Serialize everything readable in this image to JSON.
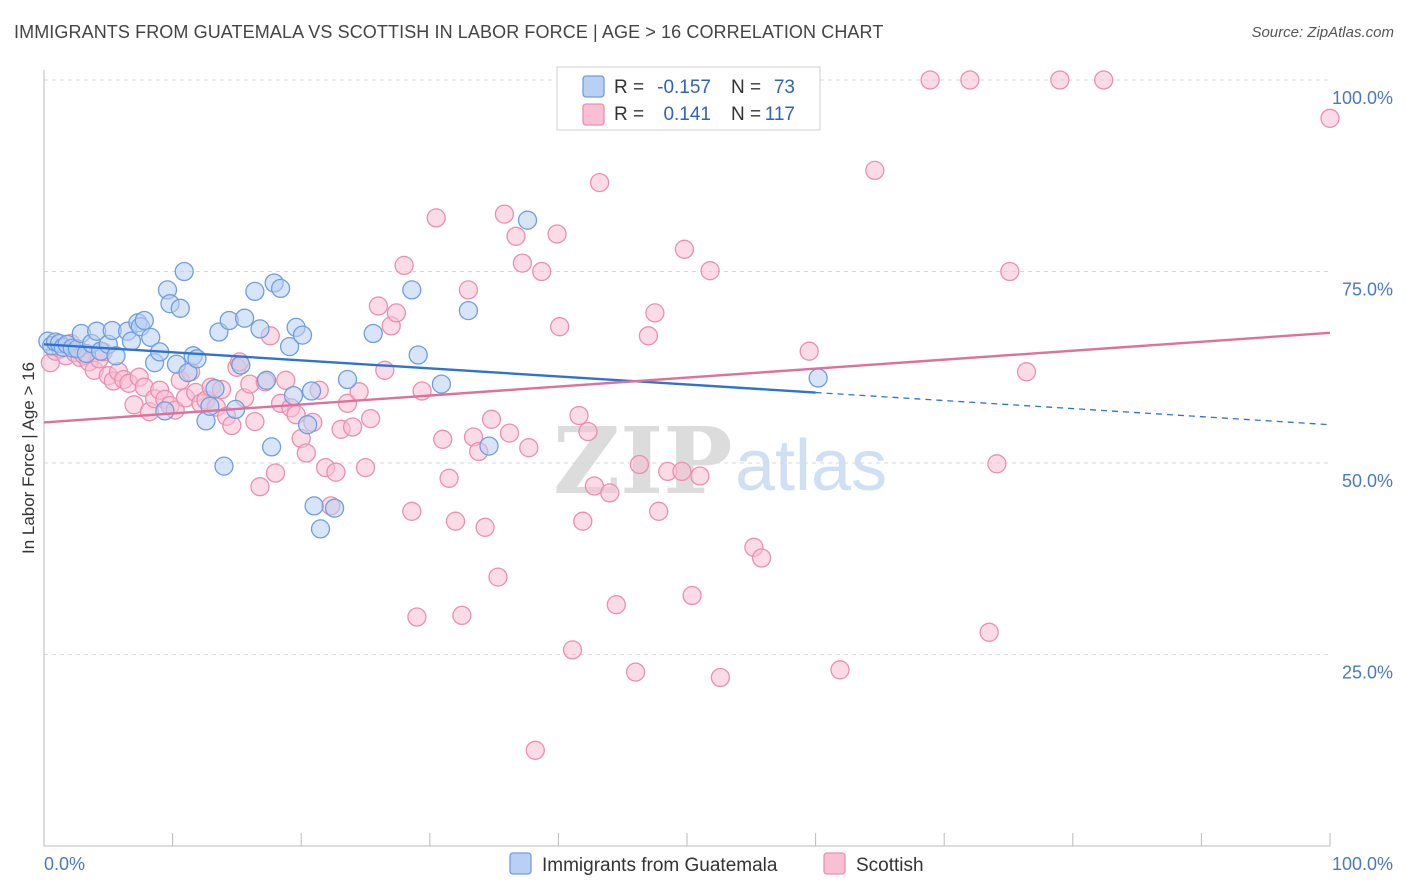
{
  "title": "IMMIGRANTS FROM GUATEMALA VS SCOTTISH IN LABOR FORCE | AGE > 16 CORRELATION CHART",
  "source": "Source: ZipAtlas.com",
  "watermark": {
    "zip": "ZIP",
    "atlas": "atlas"
  },
  "colors": {
    "blue_fill": "#b8d0f4",
    "blue_stroke": "#6f9ee0",
    "blue_line": "#2f73d0",
    "pink_fill": "#f8c0d2",
    "pink_stroke": "#ec8fad",
    "pink_line": "#e0709a",
    "grid": "#d8d8d8",
    "tick_text": "#4a78c8"
  },
  "legend": {
    "rows": [
      {
        "r_label": "R =",
        "r_value": "-0.157",
        "n_label": "N =",
        "n_value": "73"
      },
      {
        "r_label": "R =",
        "r_value": "0.141",
        "n_label": "N =",
        "n_value": "117"
      }
    ]
  },
  "chart_data": {
    "type": "scatter",
    "xlabel": "",
    "ylabel": "In Labor Force | Age > 16",
    "xlim": [
      0,
      100
    ],
    "ylim": [
      0,
      102
    ],
    "x_tick_labels": [
      "0.0%",
      "100.0%"
    ],
    "y_tick_labels": [
      "25.0%",
      "50.0%",
      "75.0%",
      "100.0%"
    ],
    "y_ticks": [
      25,
      50,
      75,
      100
    ],
    "grid": "horizontal dashed",
    "legend_position": "top-center and bottom",
    "series": [
      {
        "name": "Immigrants from Guatemala",
        "color": "blue",
        "r": -0.157,
        "n": 73,
        "trend": {
          "x0": 0,
          "y0": 65.5,
          "x1": 60,
          "y1": 59.2,
          "dashed_to_x": 100,
          "dashed_to_y": 55.0
        },
        "points": [
          [
            0.3,
            65.9
          ],
          [
            0.6,
            65.3
          ],
          [
            0.9,
            65.8
          ],
          [
            1.2,
            65.6
          ],
          [
            1.5,
            65.1
          ],
          [
            1.8,
            65.5
          ],
          [
            2.2,
            65.0
          ],
          [
            2.6,
            64.9
          ],
          [
            2.9,
            66.9
          ],
          [
            3.3,
            64.3
          ],
          [
            3.7,
            65.6
          ],
          [
            4.1,
            67.2
          ],
          [
            4.4,
            64.6
          ],
          [
            5.0,
            65.5
          ],
          [
            5.3,
            67.3
          ],
          [
            5.6,
            64.0
          ],
          [
            6.5,
            67.2
          ],
          [
            6.8,
            65.9
          ],
          [
            7.3,
            68.3
          ],
          [
            7.5,
            67.8
          ],
          [
            7.8,
            68.6
          ],
          [
            8.3,
            66.4
          ],
          [
            8.6,
            63.1
          ],
          [
            9.0,
            64.5
          ],
          [
            9.4,
            56.8
          ],
          [
            9.6,
            72.6
          ],
          [
            9.8,
            70.8
          ],
          [
            10.3,
            62.9
          ],
          [
            10.6,
            70.2
          ],
          [
            10.9,
            75.0
          ],
          [
            11.2,
            61.8
          ],
          [
            11.6,
            64.0
          ],
          [
            11.9,
            63.6
          ],
          [
            12.6,
            55.5
          ],
          [
            12.9,
            57.4
          ],
          [
            13.3,
            59.7
          ],
          [
            13.6,
            67.1
          ],
          [
            14.0,
            49.6
          ],
          [
            14.4,
            68.6
          ],
          [
            14.9,
            57.0
          ],
          [
            15.3,
            62.8
          ],
          [
            15.6,
            68.9
          ],
          [
            16.4,
            72.4
          ],
          [
            16.8,
            67.5
          ],
          [
            17.3,
            60.8
          ],
          [
            17.7,
            52.1
          ],
          [
            17.9,
            73.5
          ],
          [
            18.4,
            72.8
          ],
          [
            19.1,
            65.2
          ],
          [
            19.4,
            58.8
          ],
          [
            19.6,
            67.7
          ],
          [
            20.1,
            66.7
          ],
          [
            20.5,
            55.0
          ],
          [
            20.8,
            59.4
          ],
          [
            21.0,
            44.4
          ],
          [
            21.5,
            41.4
          ],
          [
            22.6,
            44.1
          ],
          [
            23.6,
            60.9
          ],
          [
            25.6,
            66.9
          ],
          [
            28.6,
            72.6
          ],
          [
            29.1,
            64.1
          ],
          [
            30.9,
            60.3
          ],
          [
            33.0,
            69.9
          ],
          [
            34.6,
            52.2
          ],
          [
            37.6,
            81.7
          ],
          [
            60.2,
            61.1
          ]
        ]
      },
      {
        "name": "Scottish",
        "color": "pink",
        "r": 0.141,
        "n": 117,
        "trend": {
          "x0": 0,
          "y0": 55.3,
          "x1": 100,
          "y1": 67.0
        },
        "points": [
          [
            0.5,
            63.1
          ],
          [
            0.9,
            64.6
          ],
          [
            1.3,
            64.9
          ],
          [
            1.7,
            64.0
          ],
          [
            2.1,
            65.6
          ],
          [
            2.4,
            64.4
          ],
          [
            2.8,
            63.8
          ],
          [
            3.1,
            64.1
          ],
          [
            3.5,
            63.2
          ],
          [
            3.9,
            62.1
          ],
          [
            4.3,
            63.6
          ],
          [
            4.6,
            64.5
          ],
          [
            5.0,
            61.4
          ],
          [
            5.4,
            60.7
          ],
          [
            5.8,
            61.9
          ],
          [
            6.2,
            60.9
          ],
          [
            6.6,
            60.4
          ],
          [
            7.0,
            57.6
          ],
          [
            7.4,
            61.2
          ],
          [
            7.8,
            59.9
          ],
          [
            8.2,
            56.7
          ],
          [
            8.6,
            58.4
          ],
          [
            9.0,
            59.5
          ],
          [
            9.4,
            58.3
          ],
          [
            9.8,
            57.5
          ],
          [
            10.2,
            56.9
          ],
          [
            10.6,
            60.8
          ],
          [
            11.0,
            58.5
          ],
          [
            11.4,
            61.9
          ],
          [
            11.8,
            59.2
          ],
          [
            12.2,
            57.8
          ],
          [
            12.6,
            58.2
          ],
          [
            13.0,
            59.9
          ],
          [
            13.4,
            57.3
          ],
          [
            13.8,
            59.6
          ],
          [
            14.2,
            56.1
          ],
          [
            14.6,
            54.9
          ],
          [
            15.0,
            62.5
          ],
          [
            15.2,
            63.2
          ],
          [
            15.6,
            58.5
          ],
          [
            16.0,
            60.3
          ],
          [
            16.4,
            55.4
          ],
          [
            16.8,
            46.9
          ],
          [
            17.2,
            60.6
          ],
          [
            17.6,
            66.6
          ],
          [
            18.0,
            48.7
          ],
          [
            18.4,
            57.8
          ],
          [
            18.8,
            60.8
          ],
          [
            19.2,
            57.2
          ],
          [
            19.6,
            56.3
          ],
          [
            20.0,
            53.2
          ],
          [
            20.4,
            51.3
          ],
          [
            20.9,
            55.3
          ],
          [
            21.4,
            59.5
          ],
          [
            21.9,
            49.4
          ],
          [
            22.3,
            44.4
          ],
          [
            22.7,
            48.8
          ],
          [
            23.1,
            54.4
          ],
          [
            23.6,
            57.8
          ],
          [
            24.0,
            54.7
          ],
          [
            24.5,
            59.3
          ],
          [
            25.0,
            49.4
          ],
          [
            25.4,
            55.8
          ],
          [
            26.0,
            70.5
          ],
          [
            26.5,
            62.1
          ],
          [
            27.0,
            67.9
          ],
          [
            27.4,
            69.6
          ],
          [
            28.0,
            75.8
          ],
          [
            28.6,
            43.7
          ],
          [
            29.0,
            29.9
          ],
          [
            29.4,
            59.4
          ],
          [
            30.5,
            82.0
          ],
          [
            31.0,
            53.1
          ],
          [
            31.5,
            48.0
          ],
          [
            32.0,
            42.4
          ],
          [
            32.5,
            30.1
          ],
          [
            33.0,
            72.6
          ],
          [
            33.4,
            53.4
          ],
          [
            33.8,
            51.5
          ],
          [
            34.3,
            41.6
          ],
          [
            34.8,
            55.7
          ],
          [
            35.3,
            35.1
          ],
          [
            35.8,
            82.5
          ],
          [
            36.2,
            53.9
          ],
          [
            36.7,
            79.6
          ],
          [
            37.2,
            76.1
          ],
          [
            37.7,
            52.0
          ],
          [
            38.2,
            12.5
          ],
          [
            38.7,
            75.0
          ],
          [
            39.9,
            79.9
          ],
          [
            40.1,
            67.8
          ],
          [
            41.1,
            25.6
          ],
          [
            41.6,
            56.2
          ],
          [
            41.9,
            42.4
          ],
          [
            42.3,
            54.1
          ],
          [
            42.8,
            47.0
          ],
          [
            43.2,
            86.6
          ],
          [
            44.0,
            46.1
          ],
          [
            44.5,
            31.5
          ],
          [
            46.0,
            22.7
          ],
          [
            46.3,
            49.8
          ],
          [
            47.0,
            66.6
          ],
          [
            47.5,
            69.6
          ],
          [
            47.8,
            43.7
          ],
          [
            48.5,
            48.9
          ],
          [
            49.6,
            48.9
          ],
          [
            49.8,
            77.9
          ],
          [
            50.4,
            32.7
          ],
          [
            51.0,
            48.3
          ],
          [
            51.8,
            75.1
          ],
          [
            52.6,
            22.0
          ],
          [
            55.2,
            39.0
          ],
          [
            55.8,
            37.6
          ],
          [
            59.5,
            64.6
          ],
          [
            61.9,
            23.0
          ],
          [
            64.6,
            88.2
          ],
          [
            68.9,
            100.0
          ],
          [
            72.0,
            100.0
          ],
          [
            73.5,
            27.9
          ],
          [
            74.1,
            49.9
          ],
          [
            75.1,
            75.0
          ],
          [
            76.4,
            61.9
          ],
          [
            79.0,
            100.0
          ],
          [
            82.4,
            100.0
          ],
          [
            100.0,
            95.0
          ]
        ]
      }
    ]
  },
  "bottom_legend": [
    {
      "label": "Immigrants from Guatemala",
      "color": "blue"
    },
    {
      "label": "Scottish",
      "color": "pink"
    }
  ]
}
